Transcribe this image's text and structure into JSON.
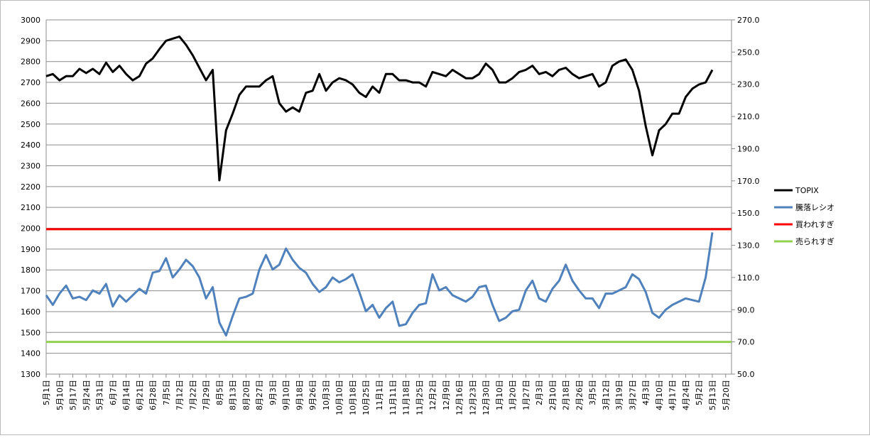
{
  "chart_data": {
    "type": "line",
    "categories": [
      "5月1日",
      null,
      "5月10日",
      null,
      "5月17日",
      null,
      "5月24日",
      null,
      "5月31日",
      null,
      "6月7日",
      null,
      "6月14日",
      null,
      "6月21日",
      null,
      "6月28日",
      null,
      "7月5日",
      null,
      "7月12日",
      null,
      "7月22日",
      null,
      "7月29日",
      null,
      "8月5日",
      null,
      "8月13日",
      null,
      "8月20日",
      null,
      "8月27日",
      null,
      "9月3日",
      null,
      "9月10日",
      null,
      "9月18日",
      null,
      "9月26日",
      null,
      "10月3日",
      null,
      "10月10日",
      null,
      "10月18日",
      null,
      "10月25日",
      null,
      "11月1日",
      null,
      "11月11日",
      null,
      "11月18日",
      null,
      "11月25日",
      null,
      "12月2日",
      null,
      "12月9日",
      null,
      "12月16日",
      null,
      "12月23日",
      null,
      "12月30日",
      null,
      "1月10日",
      null,
      "1月20日",
      null,
      "1月27日",
      null,
      "2月3日",
      null,
      "2月10日",
      null,
      "2月18日",
      null,
      "2月26日",
      null,
      "3月5日",
      null,
      "3月12日",
      null,
      "3月19日",
      null,
      "3月27日",
      null,
      "4月3日",
      null,
      "4月10日",
      null,
      "4月17日",
      null,
      "4月24日",
      null,
      "5月2日",
      null,
      "5月13日",
      null,
      "5月20日"
    ],
    "series": [
      {
        "name": "TOPIX",
        "color": "#000000",
        "axis": "y",
        "values": [
          2730,
          2740,
          2710,
          2730,
          2730,
          2765,
          2745,
          2765,
          2740,
          2795,
          2750,
          2780,
          2740,
          2710,
          2730,
          2790,
          2815,
          2860,
          2900,
          2910,
          2920,
          2880,
          2830,
          2770,
          2710,
          2760,
          2230,
          2470,
          2550,
          2640,
          2680,
          2680,
          2680,
          2710,
          2730,
          2600,
          2560,
          2580,
          2560,
          2650,
          2660,
          2740,
          2660,
          2700,
          2720,
          2710,
          2690,
          2650,
          2630,
          2680,
          2650,
          2740,
          2740,
          2710,
          2710,
          2700,
          2700,
          2680,
          2750,
          2740,
          2730,
          2760,
          2740,
          2720,
          2720,
          2740,
          2790,
          2760,
          2700,
          2700,
          2720,
          2750,
          2760,
          2780,
          2740,
          2750,
          2730,
          2760,
          2770,
          2740,
          2720,
          2730,
          2740,
          2680,
          2700,
          2780,
          2800,
          2810,
          2760,
          2660,
          2490,
          2350,
          2470,
          2500,
          2550,
          2550,
          2630,
          2670,
          2690,
          2700,
          2760,
          null,
          null
        ]
      },
      {
        "name": "騰落レシオ",
        "color": "#4f81bd",
        "axis": "y2",
        "values": [
          99,
          93,
          100,
          105,
          97,
          98,
          96,
          102,
          100,
          106,
          92,
          99,
          95,
          99,
          103,
          100,
          113,
          114,
          122,
          110,
          115,
          121,
          117,
          110,
          97,
          104,
          82,
          74,
          86,
          97,
          98,
          100,
          115,
          124,
          115,
          118,
          128,
          121,
          116,
          113,
          106,
          101,
          104,
          110,
          107,
          109,
          112,
          101,
          89,
          93,
          85,
          91,
          95,
          80,
          81,
          88,
          93,
          94,
          112,
          102,
          104,
          99,
          97,
          95,
          98,
          104,
          105,
          93,
          83,
          85,
          89,
          90,
          102,
          108,
          97,
          95,
          103,
          108,
          118,
          108,
          102,
          97,
          97,
          91,
          100,
          100,
          102,
          104,
          112,
          109,
          101,
          88,
          85,
          90,
          93,
          95,
          97,
          96,
          95,
          110,
          138,
          null,
          null
        ]
      }
    ],
    "reference_lines": [
      {
        "name": "買われすぎ",
        "color": "#ff0000",
        "axis": "y2",
        "value": 140
      },
      {
        "name": "売られすぎ",
        "color": "#92d050",
        "axis": "y2",
        "value": 70
      }
    ],
    "ylim": [
      1300,
      3000
    ],
    "yticks": [
      1300,
      1400,
      1500,
      1600,
      1700,
      1800,
      1900,
      2000,
      2100,
      2200,
      2300,
      2400,
      2500,
      2600,
      2700,
      2800,
      2900,
      3000
    ],
    "y2lim": [
      50,
      270
    ],
    "y2ticks": [
      {
        "value": 50,
        "label": "50.0"
      },
      {
        "value": 70,
        "label": "70.0"
      },
      {
        "value": 90,
        "label": "90.0"
      },
      {
        "value": 110,
        "label": "110.0"
      },
      {
        "value": 130,
        "label": "130.0"
      },
      {
        "value": 150,
        "label": "150.0"
      },
      {
        "value": 170,
        "label": "170.0"
      },
      {
        "value": 190,
        "label": "190.0"
      },
      {
        "value": 210,
        "label": "210.0"
      },
      {
        "value": 230,
        "label": "230.0"
      },
      {
        "value": 250,
        "label": "250.0"
      },
      {
        "value": 270,
        "label": "270.0"
      }
    ],
    "grid": true,
    "legend": "right"
  }
}
